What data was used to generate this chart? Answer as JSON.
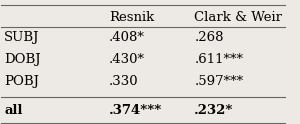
{
  "col_headers": [
    "",
    "Resnik",
    "Clark & Weir"
  ],
  "rows": [
    [
      "SUBJ",
      ".408*",
      ".268"
    ],
    [
      "DOBJ",
      ".430*",
      ".611***"
    ],
    [
      "POBJ",
      ".330",
      ".597***"
    ],
    [
      "all",
      ".374***",
      ".232*"
    ]
  ],
  "bold_rows": [
    3
  ],
  "bg_color": "#ede9e4",
  "text_color": "#000000",
  "line_color": "#666666"
}
